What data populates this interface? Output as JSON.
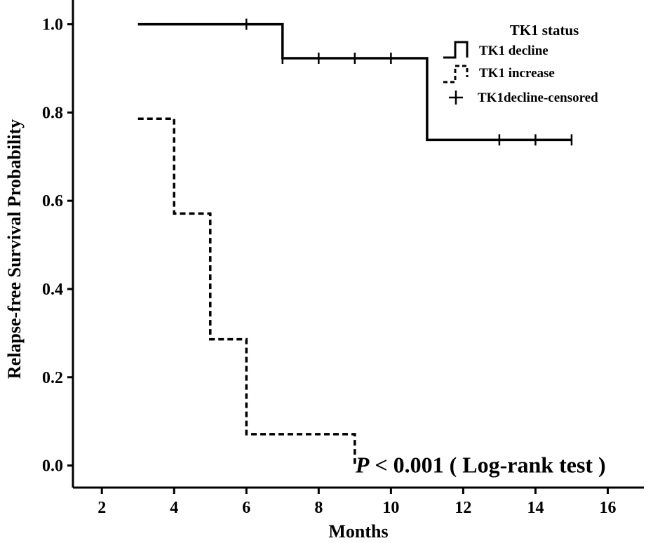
{
  "chart_data": {
    "type": "line",
    "xlabel": "Months",
    "ylabel": "Relapse-free Survival Probability",
    "xlim": [
      1.2,
      17.0
    ],
    "ylim": [
      -0.05,
      1.055
    ],
    "x_ticks": [
      2,
      4,
      6,
      8,
      10,
      12,
      14,
      16
    ],
    "x_tick_labels": [
      "2",
      "4",
      "6",
      "8",
      "10",
      "12",
      "14",
      "16"
    ],
    "y_ticks": [
      0.0,
      0.2,
      0.4,
      0.6,
      0.8,
      1.0
    ],
    "y_tick_labels": [
      "0.0",
      "0.2",
      "0.4",
      "0.6",
      "0.8",
      "1.0"
    ],
    "grid": false,
    "legend": {
      "title": "TK1 status",
      "placement": "top-right",
      "entries": [
        "TK1 decline",
        "TK1 increase",
        "TK1decline-censored"
      ]
    },
    "series": [
      {
        "name": "TK1 decline",
        "style": "solid",
        "color": "#000000",
        "steps": [
          [
            3,
            1.0
          ],
          [
            7,
            0.923
          ],
          [
            11,
            0.738
          ],
          [
            15,
            0.738
          ]
        ],
        "censored": [
          [
            6,
            1.0
          ],
          [
            7,
            0.923
          ],
          [
            8,
            0.923
          ],
          [
            9,
            0.923
          ],
          [
            10,
            0.923
          ],
          [
            13,
            0.738
          ],
          [
            14,
            0.738
          ],
          [
            15,
            0.738
          ]
        ]
      },
      {
        "name": "TK1 increase",
        "style": "dashed",
        "color": "#000000",
        "steps": [
          [
            3,
            0.786
          ],
          [
            4,
            0.571
          ],
          [
            5,
            0.286
          ],
          [
            6,
            0.071
          ],
          [
            9,
            0.0
          ]
        ],
        "censored": []
      }
    ],
    "annotation": {
      "p_symbol": "P",
      "text": " < 0.001 ( Log-rank test )",
      "x": 9.0,
      "y": 0.0
    }
  }
}
